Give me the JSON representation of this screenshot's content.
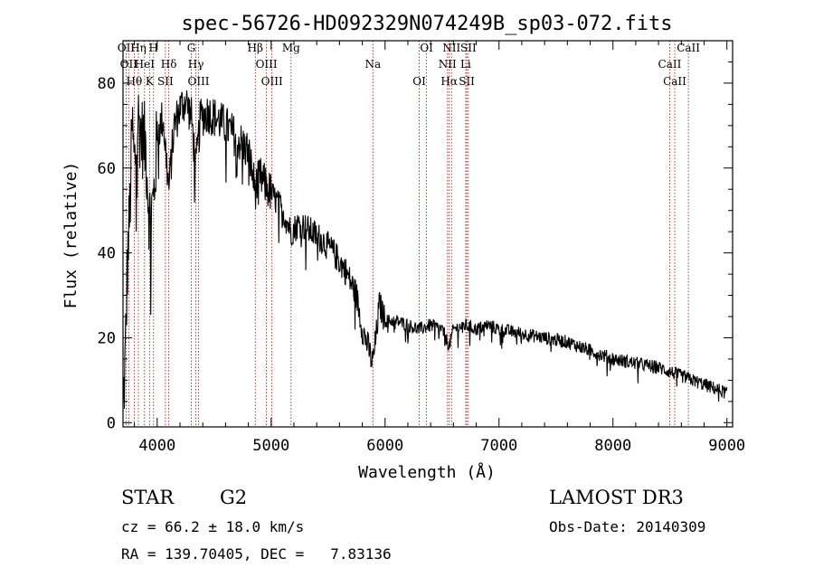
{
  "chart_data": {
    "type": "line",
    "title": "spec-56726-HD092329N074249B_sp03-072.fits",
    "xlabel": "Wavelength (Å)",
    "ylabel": "Flux (relative)",
    "xlim": [
      3700,
      9050
    ],
    "ylim": [
      -1,
      90
    ],
    "xticks": [
      4000,
      5000,
      6000,
      7000,
      8000,
      9000
    ],
    "yticks": [
      0,
      20,
      40,
      60,
      80
    ],
    "grid": false,
    "spectrum_anchors": [
      [
        3700,
        2
      ],
      [
        3720,
        15
      ],
      [
        3740,
        38
      ],
      [
        3760,
        50
      ],
      [
        3780,
        70
      ],
      [
        3800,
        60
      ],
      [
        3830,
        72
      ],
      [
        3860,
        68
      ],
      [
        3900,
        65
      ],
      [
        3933,
        48
      ],
      [
        3968,
        52
      ],
      [
        4000,
        68
      ],
      [
        4050,
        72
      ],
      [
        4102,
        55
      ],
      [
        4150,
        70
      ],
      [
        4200,
        74
      ],
      [
        4250,
        76
      ],
      [
        4300,
        72
      ],
      [
        4340,
        60
      ],
      [
        4380,
        72
      ],
      [
        4450,
        73
      ],
      [
        4500,
        72
      ],
      [
        4600,
        70
      ],
      [
        4700,
        67
      ],
      [
        4800,
        64
      ],
      [
        4861,
        55
      ],
      [
        4900,
        58
      ],
      [
        5000,
        54
      ],
      [
        5100,
        50
      ],
      [
        5175,
        45
      ],
      [
        5250,
        47
      ],
      [
        5350,
        45
      ],
      [
        5450,
        43
      ],
      [
        5550,
        40
      ],
      [
        5650,
        36
      ],
      [
        5750,
        30
      ],
      [
        5800,
        22
      ],
      [
        5850,
        18
      ],
      [
        5890,
        14
      ],
      [
        5920,
        20
      ],
      [
        5950,
        28
      ],
      [
        6000,
        24
      ],
      [
        6100,
        24
      ],
      [
        6200,
        23
      ],
      [
        6300,
        22
      ],
      [
        6400,
        23
      ],
      [
        6500,
        22
      ],
      [
        6563,
        18
      ],
      [
        6600,
        22
      ],
      [
        6700,
        23
      ],
      [
        6800,
        22
      ],
      [
        6900,
        23
      ],
      [
        7000,
        22
      ],
      [
        7200,
        21
      ],
      [
        7400,
        20
      ],
      [
        7600,
        19
      ],
      [
        7800,
        17
      ],
      [
        8000,
        15
      ],
      [
        8200,
        14
      ],
      [
        8400,
        13
      ],
      [
        8600,
        11
      ],
      [
        8800,
        9
      ],
      [
        9000,
        7
      ]
    ],
    "emission_lines": [
      {
        "wl": 3727,
        "label": "OII"
      },
      {
        "wl": 3750,
        "label": "OII"
      },
      {
        "wl": 3798,
        "label": "Hθ"
      },
      {
        "wl": 3835,
        "label": "Hη"
      },
      {
        "wl": 3889,
        "label": "HeI"
      },
      {
        "wl": 3933,
        "label": "K"
      },
      {
        "wl": 3968,
        "label": "H"
      },
      {
        "wl": 4102,
        "label": "Hδ"
      },
      {
        "wl": 4072,
        "label": "SII"
      },
      {
        "wl": 4300,
        "label": "G"
      },
      {
        "wl": 4340,
        "label": "Hγ"
      },
      {
        "wl": 4363,
        "label": "OIII"
      },
      {
        "wl": 4861,
        "label": "Hβ"
      },
      {
        "wl": 4959,
        "label": "OIII"
      },
      {
        "wl": 5007,
        "label": "OIII"
      },
      {
        "wl": 5175,
        "label": "Mg"
      },
      {
        "wl": 5893,
        "label": "Na"
      },
      {
        "wl": 6300,
        "label": "OI"
      },
      {
        "wl": 6364,
        "label": "OI"
      },
      {
        "wl": 6548,
        "label": "NII"
      },
      {
        "wl": 6563,
        "label": "Hα"
      },
      {
        "wl": 6583,
        "label": "NII"
      },
      {
        "wl": 6708,
        "label": "Li"
      },
      {
        "wl": 6717,
        "label": "SII"
      },
      {
        "wl": 6731,
        "label": "SII"
      },
      {
        "wl": 8498,
        "label": "CaII"
      },
      {
        "wl": 8542,
        "label": "CaII"
      },
      {
        "wl": 8662,
        "label": "CaII"
      }
    ]
  },
  "info": {
    "object_class": "STAR",
    "subclass": "G2",
    "survey": "LAMOST DR3",
    "cz": "cz = 66.2 ± 18.0 km/s",
    "obs_date": "Obs-Date: 20140309",
    "coords": "RA = 139.70405, DEC =   7.83136"
  }
}
